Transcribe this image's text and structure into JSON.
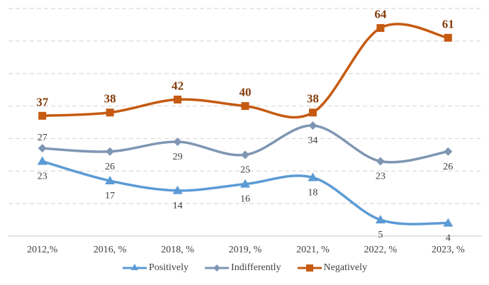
{
  "chart_data": {
    "type": "line",
    "title": "",
    "xlabel": "",
    "ylabel": "",
    "categories": [
      "2012,%",
      "2016, %",
      "2018, %",
      "2019, %",
      "2021, %",
      "2022, %",
      "2023, %"
    ],
    "ylim": [
      0,
      70
    ],
    "grid": true,
    "grid_step": 10,
    "smooth": true,
    "legend_position": "bottom",
    "series": [
      {
        "name": "Positively",
        "color": "#5b9bd5",
        "marker": "triangle",
        "label_color": "#404040",
        "label_bold": false,
        "label_position": "below",
        "values": [
          23,
          17,
          14,
          16,
          18,
          5,
          4
        ]
      },
      {
        "name": "Indifferently",
        "color": "#7f96b3",
        "marker": "diamond",
        "label_color": "#404040",
        "label_bold": false,
        "label_position": "mixed",
        "values": [
          27,
          26,
          29,
          25,
          34,
          23,
          26
        ]
      },
      {
        "name": "Negatively",
        "color": "#c55a11",
        "marker": "square",
        "label_color": "#843c0c",
        "label_bold": true,
        "label_position": "above",
        "values": [
          37,
          38,
          42,
          40,
          38,
          64,
          61
        ]
      }
    ]
  }
}
